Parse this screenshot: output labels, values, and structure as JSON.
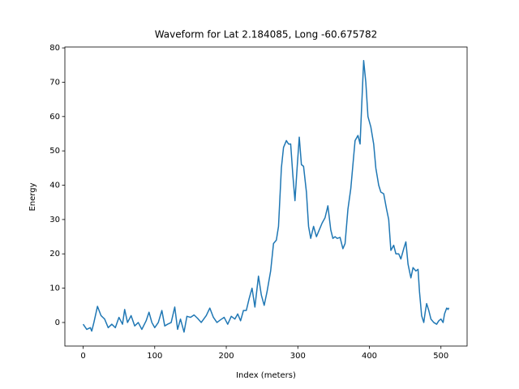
{
  "chart_data": {
    "type": "line",
    "title": "Waveform for Lat 2.184085, Long -60.675782",
    "x_label": "Index (meters)",
    "y_label": "Energy",
    "x": [
      0,
      5,
      10,
      12,
      15,
      20,
      25,
      30,
      35,
      40,
      45,
      50,
      55,
      58,
      62,
      67,
      72,
      77,
      82,
      88,
      92,
      96,
      100,
      105,
      110,
      114,
      118,
      123,
      128,
      132,
      136,
      141,
      145,
      150,
      155,
      160,
      165,
      172,
      177,
      182,
      187,
      192,
      197,
      202,
      207,
      212,
      216,
      220,
      224,
      228,
      232,
      236,
      240,
      245,
      249,
      253,
      257,
      262,
      266,
      270,
      273,
      277,
      280,
      284,
      287,
      290,
      293,
      296,
      299,
      302,
      305,
      308,
      312,
      315,
      318,
      322,
      326,
      330,
      334,
      338,
      342,
      346,
      349,
      352,
      355,
      359,
      363,
      366,
      370,
      374,
      377,
      380,
      384,
      387,
      389,
      392,
      395,
      398,
      402,
      406,
      409,
      413,
      416,
      420,
      424,
      427,
      430,
      434,
      437,
      441,
      444,
      448,
      451,
      454,
      458,
      461,
      465,
      468,
      470,
      473,
      476,
      478,
      480,
      483,
      486,
      490,
      494,
      497,
      500,
      503,
      505,
      508,
      510,
      511
    ],
    "series": [
      {
        "name": "Energy",
        "color": "#1f77b4",
        "values": [
          -0.5,
          -2,
          -1.5,
          -2.5,
          0,
          4.7,
          2,
          1,
          -1.5,
          -0.5,
          -1.5,
          1.5,
          -0.5,
          3.8,
          0,
          2,
          -1,
          0,
          -2,
          0.5,
          3,
          0,
          -1.5,
          0,
          3.5,
          -1,
          -0.5,
          0,
          4.5,
          -2,
          1,
          -2.8,
          1.8,
          1.5,
          2.2,
          1.2,
          0,
          2,
          4.2,
          1.5,
          0,
          0.8,
          1.5,
          -0.5,
          1.8,
          1,
          2.5,
          0.5,
          3.5,
          3.5,
          7,
          10,
          4.5,
          13.5,
          8,
          5,
          9,
          15,
          23,
          24,
          28,
          45,
          51,
          53,
          52,
          52,
          43,
          35.5,
          45,
          54,
          46,
          45.5,
          38,
          28,
          24.5,
          28,
          25,
          27,
          29,
          30.5,
          34,
          27,
          24.5,
          25,
          24.5,
          24.8,
          21.5,
          23,
          33,
          39,
          46,
          53,
          54.5,
          52,
          62,
          76.3,
          70,
          60,
          57,
          52,
          45,
          40,
          38,
          37.5,
          33,
          30,
          21,
          22.5,
          20,
          20,
          18.5,
          21.5,
          23.5,
          17,
          13,
          16,
          15,
          15.5,
          9,
          2,
          0,
          3,
          5.5,
          3.5,
          1,
          0,
          -0.5,
          0.5,
          1,
          0,
          2.5,
          4.2,
          3.8,
          4.3
        ]
      }
    ],
    "xlim": [
      -25.55,
      536.55
    ],
    "ylim": [
      -6.86,
      80.26
    ],
    "xticks": [
      0,
      100,
      200,
      300,
      400,
      500
    ],
    "yticks": [
      0,
      10,
      20,
      30,
      40,
      50,
      60,
      70,
      80
    ]
  }
}
